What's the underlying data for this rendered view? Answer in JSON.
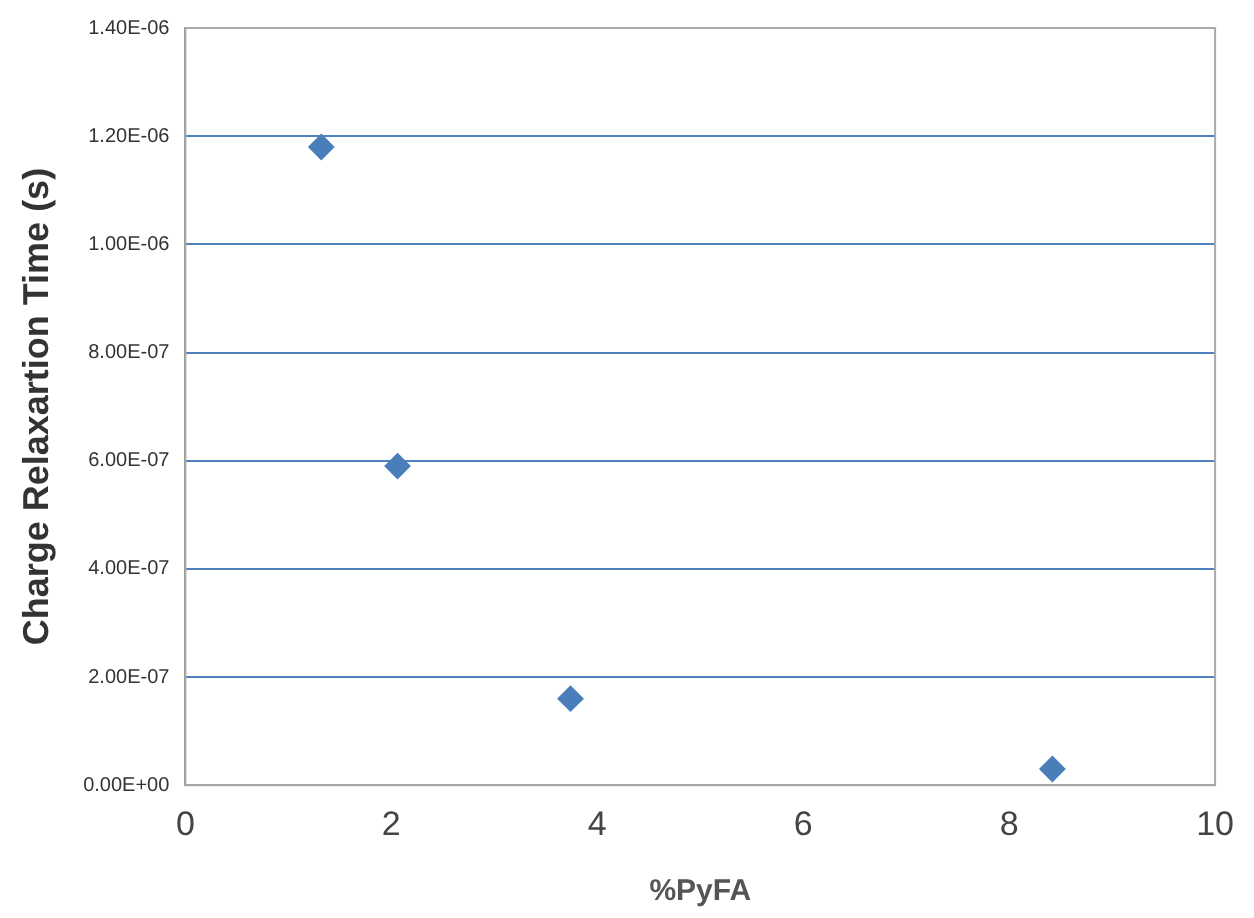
{
  "chart_data": {
    "type": "scatter",
    "xlabel": "%PyFA",
    "ylabel": "Charge Relaxartion Time (s)",
    "x": [
      1.32,
      2.06,
      3.74,
      8.42
    ],
    "values": [
      1.18e-06,
      5.9e-07,
      1.6e-07,
      3e-08
    ],
    "color": "#4a7ebb",
    "marker": "diamond",
    "grid": "y",
    "legend": false,
    "xlim": [
      0,
      10
    ],
    "xticks": [
      0,
      2,
      4,
      6,
      8,
      10
    ],
    "ylim": [
      0,
      1.4e-06
    ],
    "yticks": [
      {
        "value": 0,
        "label": "0.00E+00"
      },
      {
        "value": 2e-07,
        "label": "2.00E-07"
      },
      {
        "value": 4e-07,
        "label": "4.00E-07"
      },
      {
        "value": 6e-07,
        "label": "6.00E-07"
      },
      {
        "value": 8e-07,
        "label": "8.00E-07"
      },
      {
        "value": 1e-06,
        "label": "1.00E-06"
      },
      {
        "value": 1.2e-06,
        "label": "1.20E-06"
      },
      {
        "value": 1.4e-06,
        "label": "1.40E-06"
      }
    ]
  }
}
